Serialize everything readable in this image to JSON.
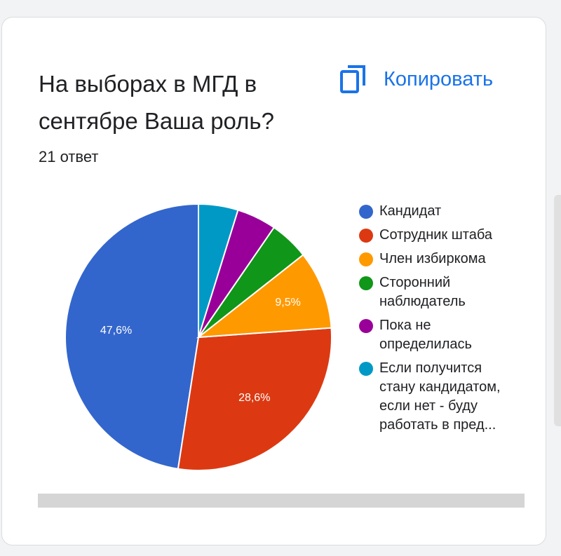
{
  "header": {
    "title": "На выборах в МГД в сентябре Ваша роль?",
    "response_count": "21 ответ",
    "copy_label": "Копировать",
    "copy_icon": "copy-icon"
  },
  "colors": {
    "accent": "#1a73e8"
  },
  "chart_data": {
    "type": "pie",
    "slices": [
      {
        "label": "Кандидат",
        "value": 47.6,
        "color": "#3366cc",
        "data_label": "47,6%"
      },
      {
        "label": "Сотрудник штаба",
        "value": 28.6,
        "color": "#dc3912",
        "data_label": "28,6%"
      },
      {
        "label": "Член избиркома",
        "value": 9.5,
        "color": "#ff9900",
        "data_label": "9,5%"
      },
      {
        "label": "Сторонний наблюдатель",
        "value": 4.8,
        "color": "#109618",
        "data_label": ""
      },
      {
        "label": "Пока не определилась",
        "value": 4.8,
        "color": "#990099",
        "data_label": ""
      },
      {
        "label": "Если получится стану кандидатом, если нет - буду работать в пред...",
        "value": 4.8,
        "color": "#0099c6",
        "data_label": ""
      }
    ],
    "start_angle_deg": 90,
    "direction": "counterclockwise",
    "legend_position": "right"
  }
}
